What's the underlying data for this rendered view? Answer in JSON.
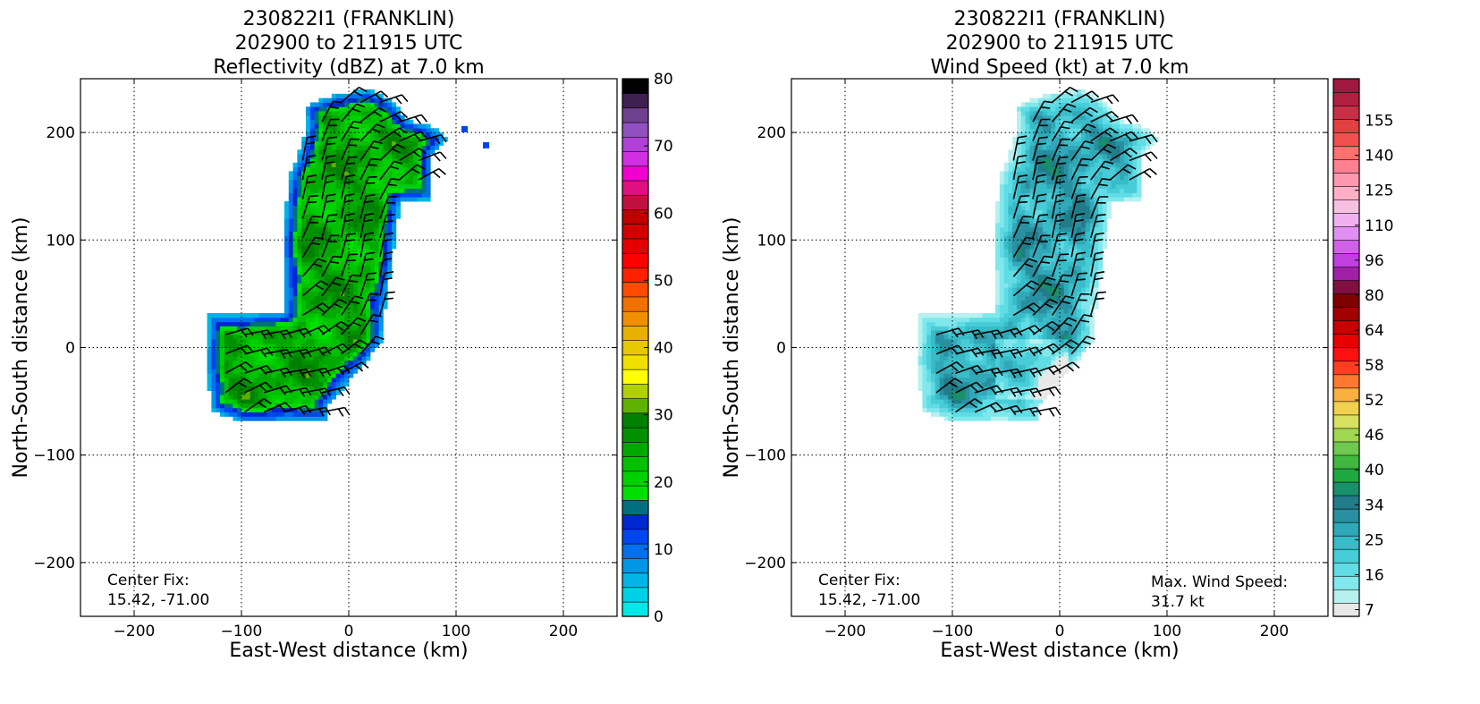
{
  "chart_data": [
    {
      "type": "heatmap",
      "title_lines": [
        "230822I1 (FRANKLIN)",
        "202900 to 211915 UTC",
        "Reflectivity (dBZ) at 7.0 km"
      ],
      "xlabel": "East-West distance (km)",
      "ylabel": "North-South distance (km)",
      "xlim": [
        -250,
        250
      ],
      "ylim": [
        -250,
        250
      ],
      "xticks": [
        -200,
        -100,
        0,
        100,
        200
      ],
      "yticks": [
        -200,
        -100,
        0,
        100,
        200
      ],
      "grid": true,
      "annotation_left": [
        "Center Fix:",
        "15.42, -71.00"
      ],
      "colorbar": {
        "ticks": [
          "0",
          "10",
          "20",
          "30",
          "40",
          "50",
          "60",
          "70",
          "80"
        ],
        "colors": [
          "#00e8e8",
          "#00d0e6",
          "#00b4e6",
          "#0096e6",
          "#0070f0",
          "#0046f0",
          "#0028d0",
          "#007080",
          "#00e000",
          "#00d000",
          "#00c000",
          "#00a800",
          "#009000",
          "#008000",
          "#60b000",
          "#b0d000",
          "#ffff00",
          "#f0e000",
          "#e8c800",
          "#e8b000",
          "#f09000",
          "#f07000",
          "#ff4a00",
          "#ff2000",
          "#ff0000",
          "#e40000",
          "#d00000",
          "#c00000",
          "#c01040",
          "#e01080",
          "#f000d0",
          "#d030e0",
          "#b040d8",
          "#9050c0",
          "#704090",
          "#402050",
          "#000000"
        ]
      },
      "field_value_range": [
        0,
        30
      ]
    },
    {
      "type": "heatmap",
      "title_lines": [
        "230822I1 (FRANKLIN)",
        "202900 to 211915 UTC",
        "Wind Speed (kt) at 7.0 km"
      ],
      "xlabel": "East-West distance (km)",
      "ylabel": "North-South distance (km)",
      "xlim": [
        -250,
        250
      ],
      "ylim": [
        -250,
        250
      ],
      "xticks": [
        -200,
        -100,
        0,
        100,
        200
      ],
      "yticks": [
        -200,
        -100,
        0,
        100,
        200
      ],
      "grid": true,
      "annotation_left": [
        "Center Fix:",
        "15.42, -71.00"
      ],
      "annotation_right": [
        "Max. Wind Speed:",
        "31.7 kt"
      ],
      "max_wind_kt": 31.7,
      "colorbar": {
        "ticks": [
          "7",
          "16",
          "25",
          "34",
          "40",
          "46",
          "52",
          "58",
          "64",
          "80",
          "96",
          "110",
          "125",
          "140",
          "155"
        ],
        "colors": [
          "#e8e8e8",
          "#b8f0f0",
          "#80e8ec",
          "#60dce4",
          "#48ccd8",
          "#38bcc8",
          "#30a8b8",
          "#2890a0",
          "#207c88",
          "#18906a",
          "#20a840",
          "#40b840",
          "#70c850",
          "#a0d850",
          "#d8e060",
          "#f0d050",
          "#f8b040",
          "#ff7830",
          "#ff4020",
          "#ff1010",
          "#e80000",
          "#c80000",
          "#a00000",
          "#800000",
          "#801040",
          "#a020a8",
          "#c040e0",
          "#d060e8",
          "#e090f0",
          "#f0b0f0",
          "#f8c0e0",
          "#ffb0c8",
          "#ff98b0",
          "#ff8090",
          "#ff7070",
          "#f05050",
          "#e04040",
          "#c83048",
          "#b02040",
          "#a01840"
        ]
      },
      "field_value_range": [
        7,
        31.7
      ]
    }
  ]
}
